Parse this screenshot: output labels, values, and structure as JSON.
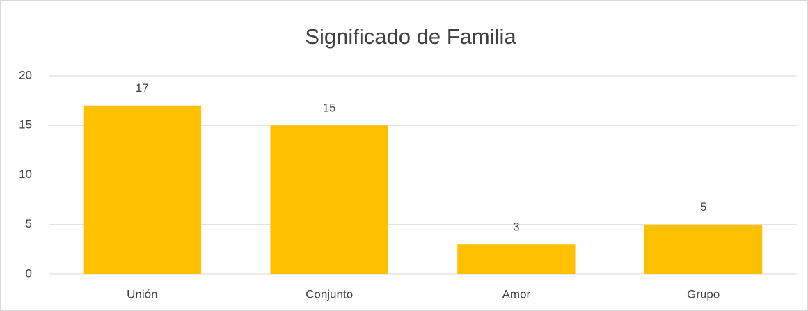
{
  "chart_data": {
    "type": "bar",
    "title": "Significado de Familia",
    "categories": [
      "Unión",
      "Conjunto",
      "Amor",
      "Grupo"
    ],
    "values": [
      17,
      15,
      3,
      5
    ],
    "color": "#ffc000",
    "ylim": [
      0,
      20
    ],
    "yticks": [
      0,
      5,
      10,
      15,
      20
    ],
    "grid": true,
    "data_labels": true
  }
}
